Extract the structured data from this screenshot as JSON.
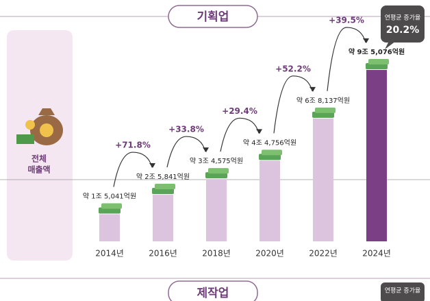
{
  "header": {
    "title": "기획업"
  },
  "side_label": [
    "전체",
    "매출액"
  ],
  "callout": {
    "label": "연평균 증가율",
    "value": "20.2%"
  },
  "chart_data": {
    "type": "bar",
    "categories": [
      "2014년",
      "2016년",
      "2018년",
      "2020년",
      "2022년",
      "2024년"
    ],
    "values": [
      15041,
      25841,
      34575,
      44756,
      68137,
      95076
    ],
    "value_labels": [
      "약 1조 5,041억원",
      "약 2조 5,841억원",
      "약 3조 4,575억원",
      "약 4조 4,756억원",
      "약 6조 8,137억원",
      "약 9조 5,076억원"
    ],
    "annotations": [
      "+71.8%",
      "+33.8%",
      "+29.4%",
      "+52.2%",
      "+39.5%"
    ],
    "color": "#dcc4df",
    "highlight_color": "#7a3f85"
  },
  "footer": {
    "title": "제작업",
    "callout_label": "연평균 증가율"
  }
}
